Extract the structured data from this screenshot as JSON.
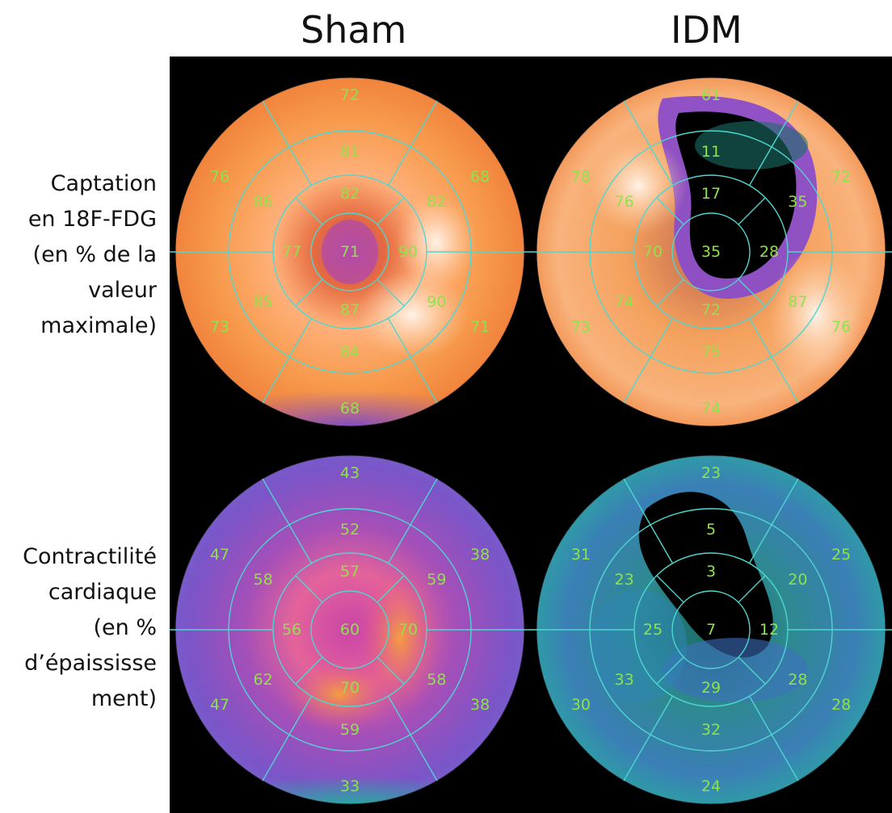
{
  "columns": [
    "Sham",
    "IDM"
  ],
  "rows": [
    {
      "label_lines": [
        "Captation",
        "en 18F-FDG",
        "(en % de la",
        "valeur",
        "maximale)"
      ]
    },
    {
      "label_lines": [
        "Contractilité",
        "cardiaque",
        "(en %",
        "d’épaississe",
        "ment)"
      ]
    }
  ],
  "colors": {
    "segment_lines": "#4fd6d0",
    "segment_text": "#8fe24a"
  },
  "panels": [
    {
      "id": "fdg-sham",
      "colormap": "orange",
      "ring1": [
        "72",
        "68",
        "71",
        "68",
        "73",
        "76"
      ],
      "ring2": [
        "81",
        "82",
        "90",
        "84",
        "85",
        "86"
      ],
      "ring3": [
        "82",
        "90",
        "87",
        "77"
      ],
      "apex": "71"
    },
    {
      "id": "fdg-idm",
      "colormap": "orange",
      "ring1": [
        "61",
        "72",
        "76",
        "74",
        "73",
        "78"
      ],
      "ring2": [
        "11",
        "35",
        "87",
        "75",
        "74",
        "76"
      ],
      "ring3": [
        "17",
        "28",
        "72",
        "70"
      ],
      "apex": "35"
    },
    {
      "id": "contract-sham",
      "colormap": "purple",
      "ring1": [
        "43",
        "38",
        "38",
        "33",
        "47",
        "47"
      ],
      "ring2": [
        "52",
        "59",
        "58",
        "59",
        "62",
        "58"
      ],
      "ring3": [
        "57",
        "70",
        "70",
        "56"
      ],
      "apex": "60"
    },
    {
      "id": "contract-idm",
      "colormap": "teal",
      "ring1": [
        "23",
        "25",
        "28",
        "24",
        "30",
        "31"
      ],
      "ring2": [
        "5",
        "20",
        "28",
        "32",
        "33",
        "23"
      ],
      "ring3": [
        "3",
        "12",
        "29",
        "25"
      ],
      "apex": "7"
    }
  ]
}
